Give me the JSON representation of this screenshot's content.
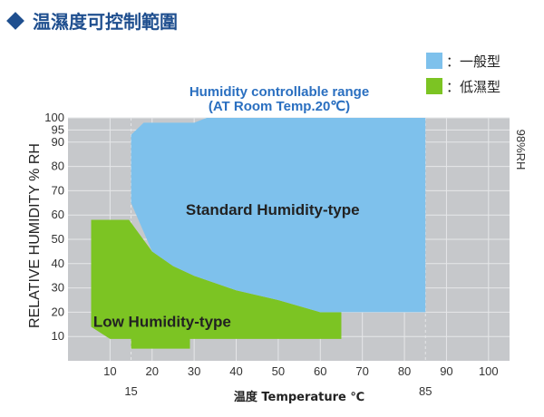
{
  "heading": {
    "title": "温濕度可控制範圍",
    "color": "#1f4f8f"
  },
  "legend": [
    {
      "name": "：一般型",
      "color": "#7ec1ec"
    },
    {
      "name": "：低濕型",
      "color": "#7cc423"
    }
  ],
  "chart_data": {
    "type": "area",
    "title": "Humidity controllable range",
    "subtitle": "(AT Room Temp.20℃)",
    "xlabel": "温度 Temperature ℃",
    "ylabel": "RELATIVE HUMIDITY % RH",
    "right_label": "98%RH",
    "xlim": [
      0,
      105
    ],
    "ylim": [
      0,
      100
    ],
    "x_ticks": [
      10,
      20,
      30,
      40,
      50,
      60,
      70,
      80,
      90,
      100
    ],
    "x_ticks_extra": [
      15,
      85
    ],
    "y_ticks": [
      10,
      20,
      30,
      40,
      50,
      60,
      70,
      80,
      90,
      95,
      100
    ],
    "grid": true,
    "background": "#c6c8cb",
    "series": [
      {
        "name": "Low Humidity-type",
        "color": "#7cc423",
        "polygon": [
          [
            5.5,
            58
          ],
          [
            14.5,
            58
          ],
          [
            20,
            45
          ],
          [
            25,
            39
          ],
          [
            30,
            35
          ],
          [
            40,
            29
          ],
          [
            50,
            25
          ],
          [
            60,
            20
          ],
          [
            65,
            20
          ],
          [
            65,
            9
          ],
          [
            15,
            9
          ],
          [
            15,
            5
          ],
          [
            29,
            5
          ],
          [
            29,
            9
          ],
          [
            65,
            9
          ],
          [
            65,
            9
          ],
          [
            10,
            9
          ],
          [
            5.5,
            14
          ]
        ],
        "label_pos": [
          6,
          14
        ]
      },
      {
        "name": "Standard Humidity-type",
        "color": "#7ec1ec",
        "polygon": [
          [
            15,
            93
          ],
          [
            18,
            98
          ],
          [
            30,
            98
          ],
          [
            33,
            100
          ],
          [
            85,
            100
          ],
          [
            85,
            20
          ],
          [
            60,
            20
          ],
          [
            50,
            25
          ],
          [
            40,
            29
          ],
          [
            30,
            35
          ],
          [
            25,
            39
          ],
          [
            20,
            45
          ],
          [
            17,
            57
          ],
          [
            15,
            65
          ]
        ],
        "label_pos": [
          28,
          60
        ]
      }
    ]
  }
}
